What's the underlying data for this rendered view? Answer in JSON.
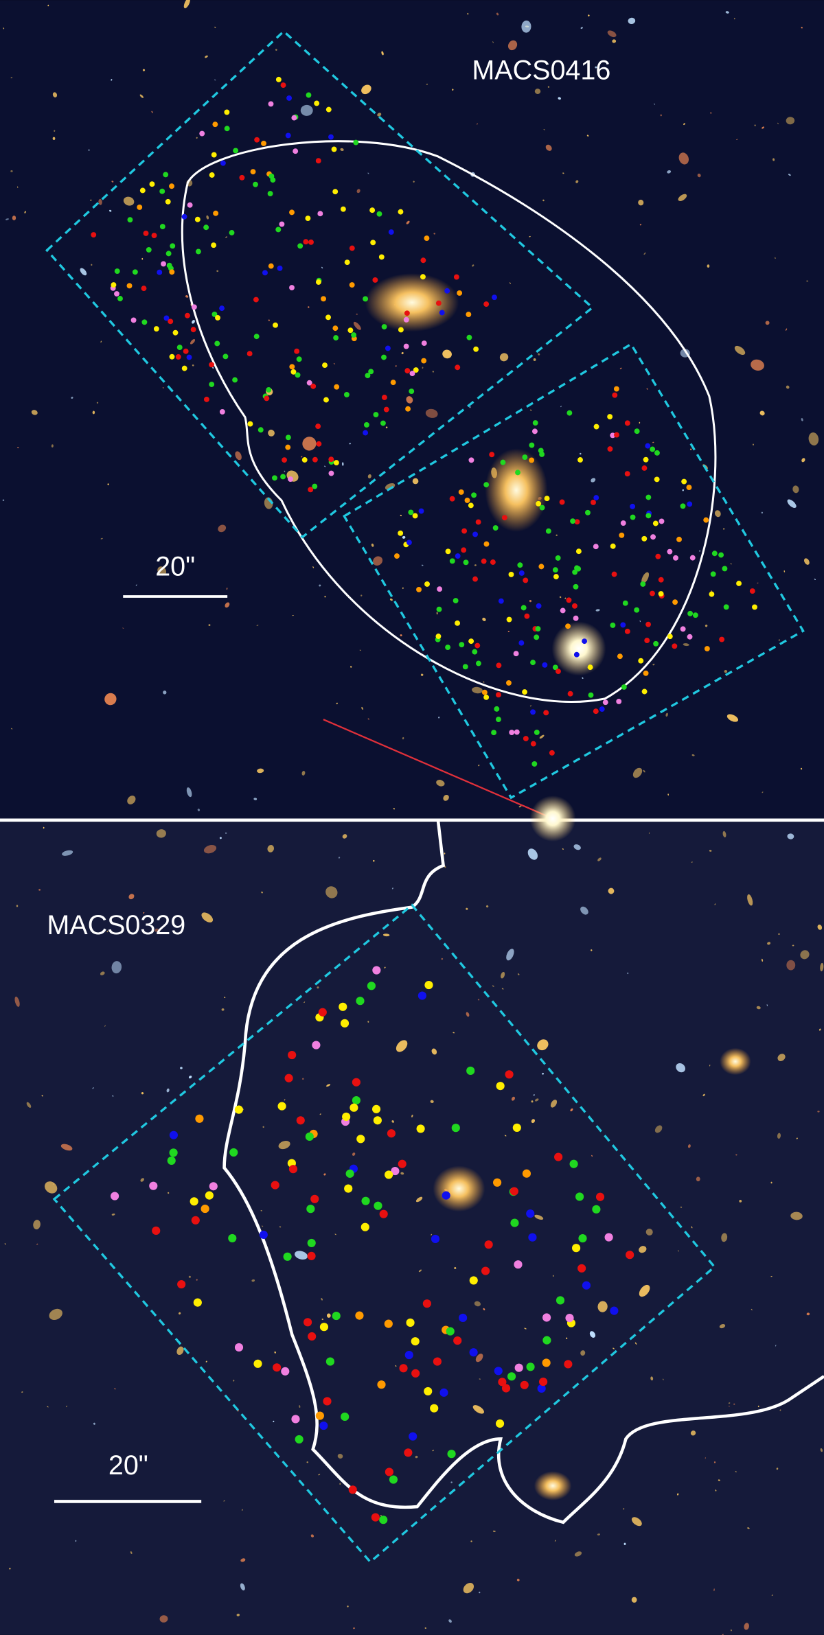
{
  "panels": [
    {
      "label": "MACS0416",
      "scale_label": "20\""
    },
    {
      "label": "MACS0329",
      "scale_label": "20\""
    }
  ]
}
